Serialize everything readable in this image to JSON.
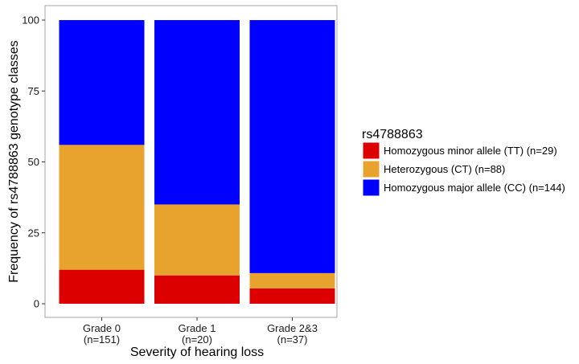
{
  "chart_data": {
    "type": "bar",
    "stacked": true,
    "categories": [
      "Grade 0\n(n=151)",
      "Grade 1\n(n=20)",
      "Grade 2&3\n(n=37)"
    ],
    "series": [
      {
        "name": "Homozygous minor allele (TT) (n=29)",
        "color": "#dd0000",
        "values": [
          12,
          10,
          5.4
        ]
      },
      {
        "name": "Heterozygous (CT) (n=88)",
        "color": "#e8a32e",
        "values": [
          44,
          25,
          5.4
        ]
      },
      {
        "name": "Homozygous major allele (CC) (n=144)",
        "color": "#0000ff",
        "values": [
          44,
          65,
          89.2
        ]
      }
    ],
    "xlabel": "Severity of hearing loss",
    "ylabel": "Frequency of rs4788863 genotype classes",
    "ylim": [
      0,
      100
    ],
    "yticks": [
      0,
      25,
      50,
      75,
      100
    ],
    "legend_title": "rs4788863",
    "legend_position": "right",
    "grid": false
  }
}
